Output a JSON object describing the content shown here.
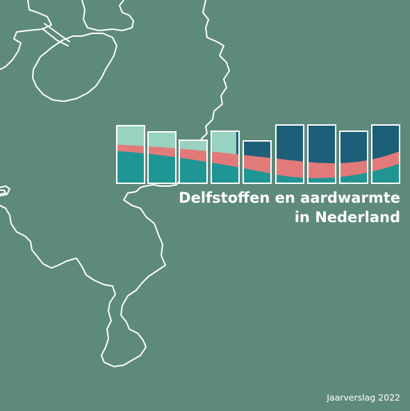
{
  "cover": {
    "title_line1": "Delfstoffen en aardwarmte",
    "title_line2": "in Nederland",
    "footer": "Jaarverslag 2022"
  },
  "colors": {
    "background": "#5e8a7a",
    "map_outline": "#ffffff",
    "teal": "#1f9694",
    "salmon": "#e27a79",
    "mint": "#98d2c0",
    "navy": "#1d5e78"
  },
  "icons": {
    "map": "netherlands-map-outline-icon",
    "logo": "stacked-bars-wave-logo-icon"
  }
}
